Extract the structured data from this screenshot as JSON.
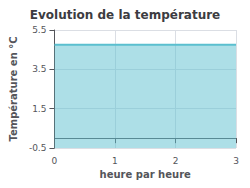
{
  "chart_data": {
    "type": "line",
    "title": "Evolution de la température",
    "x": [
      0,
      3
    ],
    "values": [
      4.75,
      4.75
    ],
    "color": "#5bbfcf",
    "xlabel": "heure par heure",
    "ylabel": "Température en °C",
    "xlim": [
      0,
      3
    ],
    "ylim": [
      -0.5,
      5.5
    ],
    "xticks": [
      0,
      1,
      2,
      3
    ],
    "yticks": [
      -0.5,
      1.5,
      3.5,
      5.5
    ],
    "grid": true
  }
}
